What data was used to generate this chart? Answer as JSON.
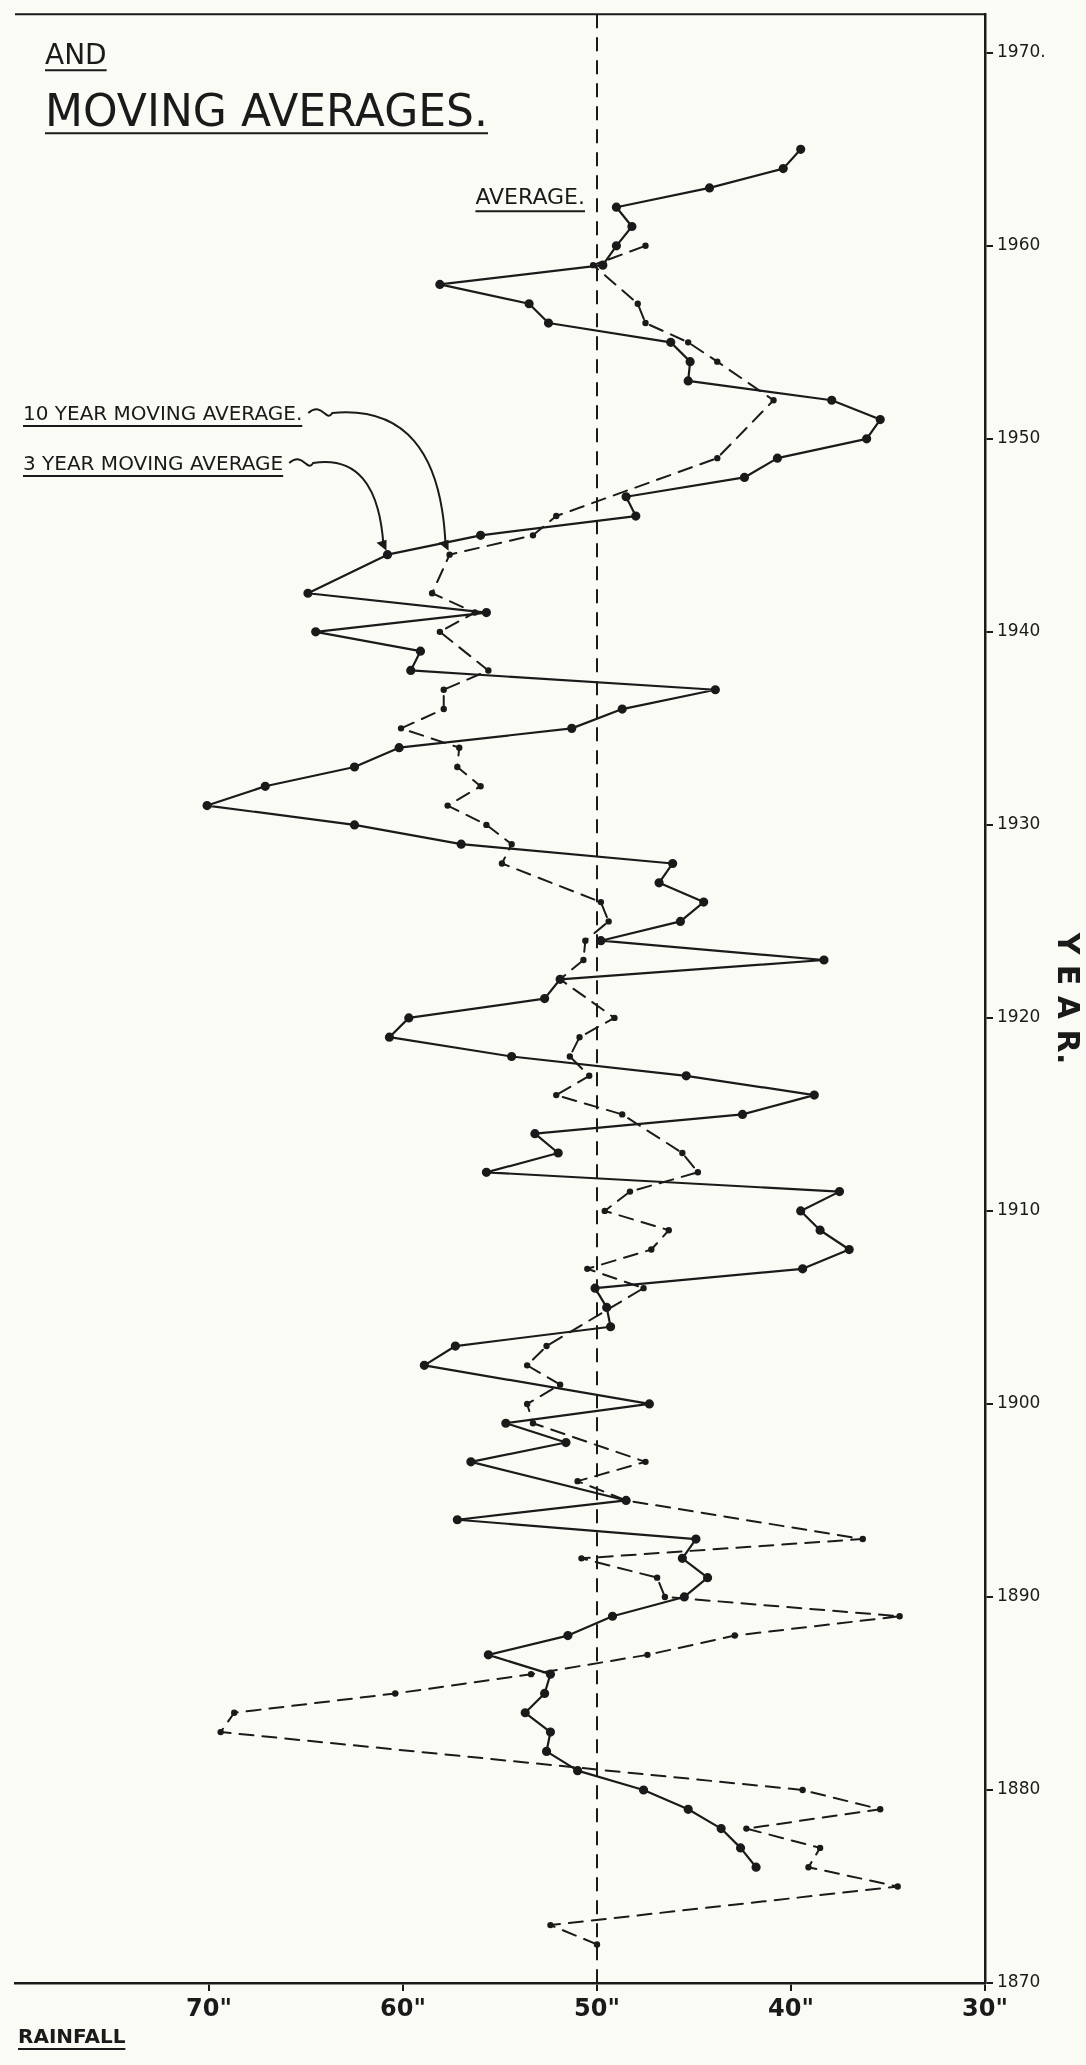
{
  "chart_data": {
    "type": "line",
    "title": "AND",
    "subtitle": "MOVING AVERAGES.",
    "xlabel": "RAINFALL",
    "ylabel": "Y E A R.",
    "xlim": [
      80,
      30
    ],
    "xticks": [
      {
        "value": 30,
        "label": "30\""
      },
      {
        "value": 40,
        "label": "40\""
      },
      {
        "value": 50,
        "label": "50\""
      },
      {
        "value": 60,
        "label": "60\""
      },
      {
        "value": 70,
        "label": "70\""
      }
    ],
    "ylim": [
      1870,
      1972
    ],
    "yticks": [
      1870,
      1880,
      1890,
      1900,
      1910,
      1920,
      1930,
      1940,
      1950,
      1960,
      {
        "value": 1970,
        "label": "1970."
      }
    ],
    "grid": false,
    "marker": "circle",
    "ref_lines": [
      {
        "axis": "x",
        "value": 50,
        "label": "AVERAGE.",
        "line_style": "dashed",
        "color": "#1a1a1a"
      }
    ],
    "series": [
      {
        "name": "3 YEAR MOVING AVERAGE",
        "color": "#1a1a1a",
        "line_style": "solid",
        "values": [
          1876,
          1877,
          1878,
          1879,
          1880,
          1881,
          1882,
          1883,
          1884,
          1885,
          1886,
          1887,
          1888,
          1889,
          1890,
          1891,
          1892,
          1893,
          1894,
          1895,
          1897,
          1898,
          1899,
          1900,
          1902,
          1903,
          1904,
          1905,
          1906,
          1907,
          1908,
          1909,
          1910,
          1911,
          1912,
          1913,
          1914,
          1915,
          1916,
          1917,
          1918,
          1919,
          1920,
          1921,
          1922,
          1923,
          1924,
          1925,
          1926,
          1927,
          1928,
          1929,
          1930,
          1931,
          1932,
          1933,
          1934,
          1935,
          1936,
          1937,
          1938,
          1939,
          1940,
          1941,
          1942,
          1944,
          1945,
          1946,
          1947,
          1948,
          1949,
          1950,
          1951,
          1952,
          1953,
          1954,
          1955,
          1956,
          1957,
          1958,
          1959,
          1960,
          1961,
          1962,
          1963,
          1964,
          1965
        ],
        "x": [
          41.8,
          42.6,
          43.6,
          45.3,
          47.6,
          51.0,
          52.6,
          52.4,
          53.7,
          52.7,
          52.4,
          55.6,
          51.5,
          49.2,
          45.5,
          44.3,
          45.6,
          44.9,
          57.2,
          48.5,
          56.5,
          51.6,
          54.7,
          47.3,
          58.9,
          57.3,
          49.3,
          49.5,
          50.1,
          39.4,
          37.0,
          38.5,
          39.5,
          37.5,
          55.7,
          52.0,
          53.2,
          42.5,
          38.8,
          45.4,
          54.4,
          60.7,
          59.7,
          52.7,
          51.9,
          38.3,
          49.8,
          45.7,
          44.5,
          46.8,
          46.1,
          57.0,
          62.5,
          70.1,
          67.1,
          62.5,
          60.2,
          51.3,
          48.7,
          43.9,
          59.6,
          59.1,
          64.5,
          55.7,
          64.9,
          60.8,
          56.0,
          48.0,
          48.5,
          42.4,
          40.7,
          36.1,
          35.4,
          37.9,
          45.3,
          45.2,
          46.2,
          52.5,
          53.5,
          58.1,
          49.7,
          49.0,
          48.2,
          49.0,
          44.2,
          40.4,
          39.5
        ]
      },
      {
        "name": "10 YEAR MOVING AVERAGE.",
        "color": "#1a1a1a",
        "line_style": "dashed",
        "values": [
          1872,
          1873,
          1875,
          1876,
          1877,
          1878,
          1879,
          1880,
          1883,
          1884,
          1885,
          1886,
          1887,
          1888,
          1889,
          1890,
          1891,
          1892,
          1893,
          1895,
          1896,
          1897,
          1899,
          1900,
          1901,
          1902,
          1903,
          1906,
          1907,
          1908,
          1909,
          1910,
          1911,
          1912,
          1913,
          1915,
          1916,
          1917,
          1918,
          1919,
          1920,
          1922,
          1923,
          1924,
          1925,
          1926,
          1928,
          1929,
          1930,
          1931,
          1932,
          1933,
          1934,
          1935,
          1936,
          1937,
          1938,
          1940,
          1941,
          1942,
          1944,
          1945,
          1946,
          1949,
          1952,
          1954,
          1955,
          1956,
          1957,
          1959,
          1960
        ],
        "x": [
          50.0,
          52.4,
          34.5,
          39.1,
          38.5,
          42.3,
          35.4,
          39.4,
          69.4,
          68.7,
          60.4,
          53.4,
          47.4,
          42.9,
          34.4,
          46.5,
          46.9,
          50.8,
          36.3,
          48.5,
          51.0,
          47.5,
          53.3,
          53.6,
          51.9,
          53.6,
          52.6,
          47.6,
          50.5,
          47.2,
          46.3,
          49.6,
          48.3,
          44.8,
          45.6,
          48.7,
          52.1,
          50.4,
          51.4,
          50.9,
          49.1,
          51.9,
          50.7,
          50.6,
          49.4,
          49.8,
          54.9,
          54.4,
          55.7,
          57.7,
          56.0,
          57.2,
          57.1,
          60.1,
          57.9,
          57.9,
          55.6,
          58.1,
          56.3,
          58.5,
          57.6,
          53.3,
          52.1,
          43.8,
          40.9,
          43.8,
          45.3,
          47.5,
          47.9,
          50.2,
          47.5
        ]
      }
    ]
  }
}
